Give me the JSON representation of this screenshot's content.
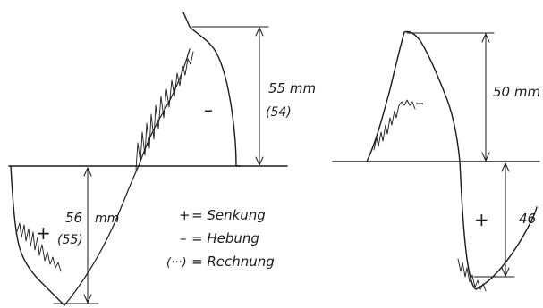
{
  "left_diagram": {
    "upper_dimension": "55 mm",
    "upper_computed": "(54)",
    "upper_sign": "–",
    "lower_dimension": "56",
    "lower_unit": "mm",
    "lower_computed": "(55)",
    "lower_sign": "+"
  },
  "right_diagram": {
    "upper_dimension": "50 mm",
    "upper_sign": "–",
    "lower_dimension": "46",
    "lower_sign": "+"
  },
  "legend": [
    {
      "symbol": "+",
      "label": "= Senkung"
    },
    {
      "symbol": "–",
      "label": "= Hebung"
    },
    {
      "symbol": "(···)",
      "label": "= Rechnung"
    }
  ]
}
